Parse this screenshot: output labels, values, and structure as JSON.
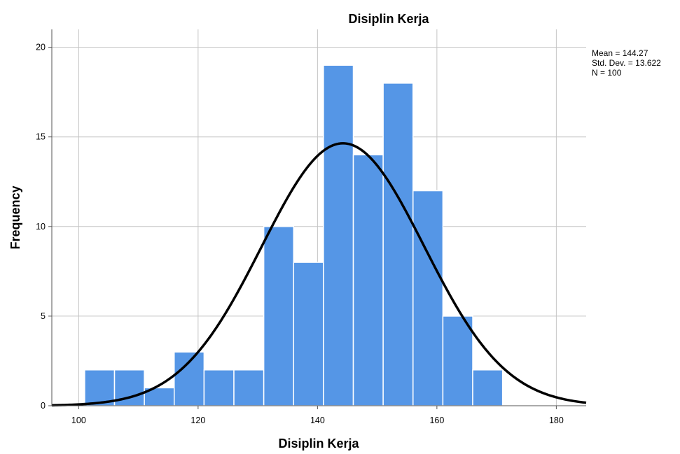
{
  "chart_data": {
    "type": "bar",
    "title": "Disiplin Kerja",
    "xlabel": "Disiplin Kerja",
    "ylabel": "Frequency",
    "xlim": [
      95.5,
      185
    ],
    "ylim": [
      0,
      21
    ],
    "x_ticks": [
      100,
      120,
      140,
      160,
      180
    ],
    "y_ticks": [
      0,
      5,
      10,
      15,
      20
    ],
    "grid": true,
    "bin_width": 5,
    "bins": [
      {
        "start": 101,
        "end": 106,
        "count": 2
      },
      {
        "start": 106,
        "end": 111,
        "count": 2
      },
      {
        "start": 111,
        "end": 116,
        "count": 1
      },
      {
        "start": 116,
        "end": 121,
        "count": 3
      },
      {
        "start": 121,
        "end": 126,
        "count": 2
      },
      {
        "start": 126,
        "end": 131,
        "count": 2
      },
      {
        "start": 131,
        "end": 136,
        "count": 10
      },
      {
        "start": 136,
        "end": 141,
        "count": 8
      },
      {
        "start": 141,
        "end": 146,
        "count": 19
      },
      {
        "start": 146,
        "end": 151,
        "count": 14
      },
      {
        "start": 151,
        "end": 156,
        "count": 18
      },
      {
        "start": 156,
        "end": 161,
        "count": 12
      },
      {
        "start": 161,
        "end": 166,
        "count": 5
      },
      {
        "start": 166,
        "end": 171,
        "count": 2
      }
    ],
    "normal_curve": {
      "mean": 144.27,
      "std": 13.622,
      "n": 100
    },
    "stats": [
      "Mean = 144.27",
      "Std. Dev. = 13.622",
      "N = 100"
    ],
    "colors": {
      "bar": "#5596e6",
      "bar_edge": "#ffffff",
      "curve": "#000000",
      "grid": "#c4c4c4",
      "axis": "#555555"
    }
  }
}
